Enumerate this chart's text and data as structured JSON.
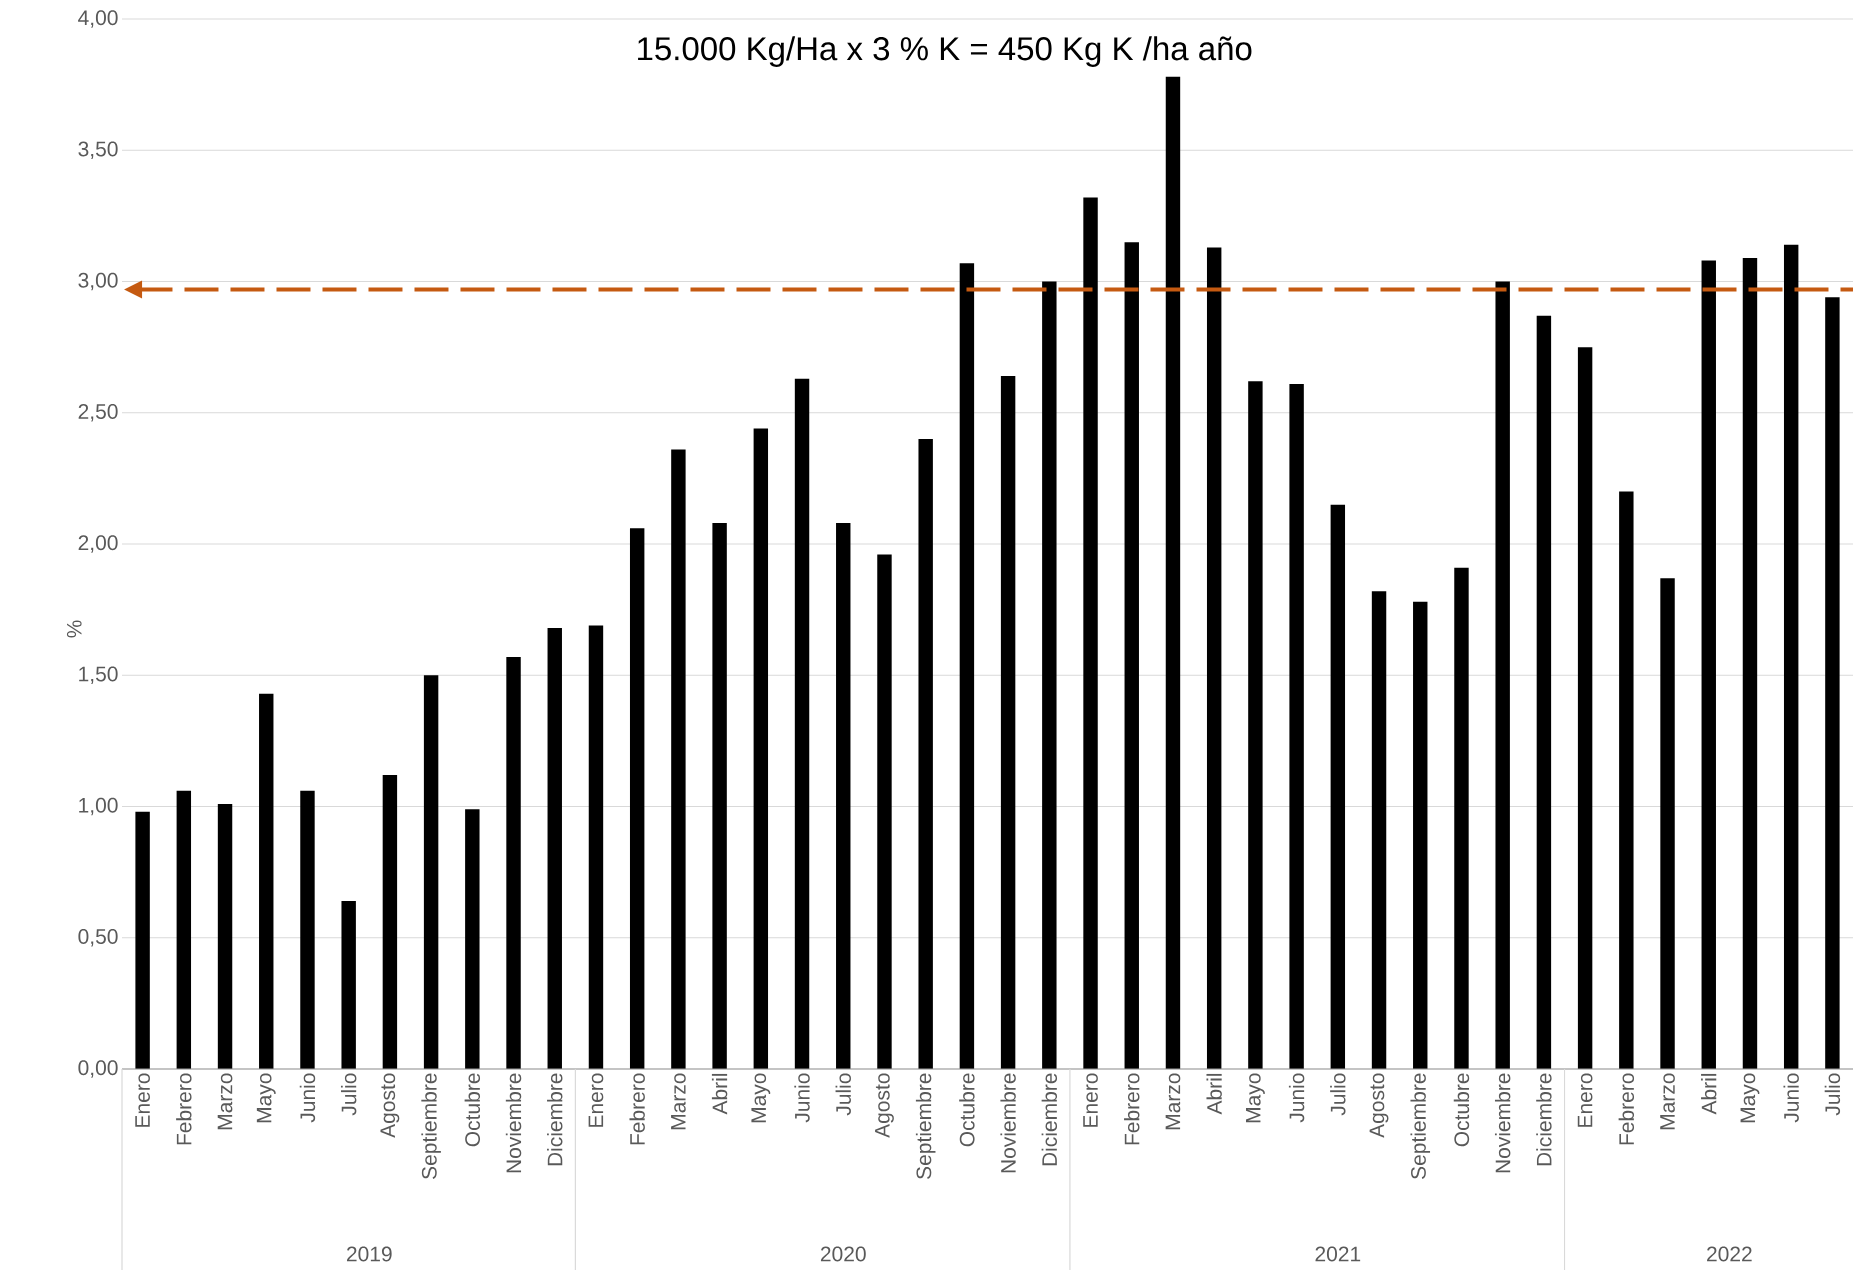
{
  "chart_data": {
    "type": "bar",
    "title": "15.000 Kg/Ha  x 3 % K  = 450 Kg K /ha año",
    "ylabel": "%",
    "categories": [
      "Enero",
      "Febrero",
      "Marzo",
      "Mayo",
      "Junio",
      "Julio",
      "Agosto",
      "Septiembre",
      "Octubre",
      "Noviembre",
      "Diciembre",
      "Enero",
      "Febrero",
      "Marzo",
      "Abril",
      "Mayo",
      "Junio",
      "Julio",
      "Agosto",
      "Septiembre",
      "Octubre",
      "Noviembre",
      "Diciembre",
      "Enero",
      "Febrero",
      "Marzo",
      "Abril",
      "Mayo",
      "Junio",
      "Julio",
      "Agosto",
      "Septiembre",
      "Octubre",
      "Noviembre",
      "Diciembre",
      "Enero",
      "Febrero",
      "Marzo",
      "Abril",
      "Mayo",
      "Junio",
      "Julio"
    ],
    "values": [
      0.98,
      1.06,
      1.01,
      1.43,
      1.06,
      0.64,
      1.12,
      1.5,
      0.99,
      1.57,
      1.68,
      1.69,
      2.06,
      2.36,
      2.08,
      2.44,
      2.63,
      2.08,
      1.96,
      2.4,
      3.07,
      2.64,
      3.0,
      3.32,
      3.15,
      3.78,
      3.13,
      2.62,
      2.61,
      2.15,
      1.82,
      1.78,
      1.91,
      3.0,
      2.87,
      2.75,
      2.2,
      1.87,
      3.08,
      3.09,
      3.14,
      2.94
    ],
    "color": "#000000",
    "ylim": [
      0,
      4
    ],
    "yticks": [
      {
        "value": 0,
        "label": "0,00"
      },
      {
        "value": 0.5,
        "label": "0,50"
      },
      {
        "value": 1,
        "label": "1,00"
      },
      {
        "value": 1.5,
        "label": "1,50"
      },
      {
        "value": 2,
        "label": "2,00"
      },
      {
        "value": 2.5,
        "label": "2,50"
      },
      {
        "value": 3,
        "label": "3,00"
      },
      {
        "value": 3.5,
        "label": "3,50"
      },
      {
        "value": 4,
        "label": "4,00"
      }
    ],
    "grid": "y",
    "ref_lines": [
      {
        "axis": "y",
        "value": 2.97,
        "color": "#c55a11",
        "line_style": "dashed"
      }
    ],
    "annotations": [
      "2019",
      "2020",
      "2021",
      "2022"
    ]
  }
}
